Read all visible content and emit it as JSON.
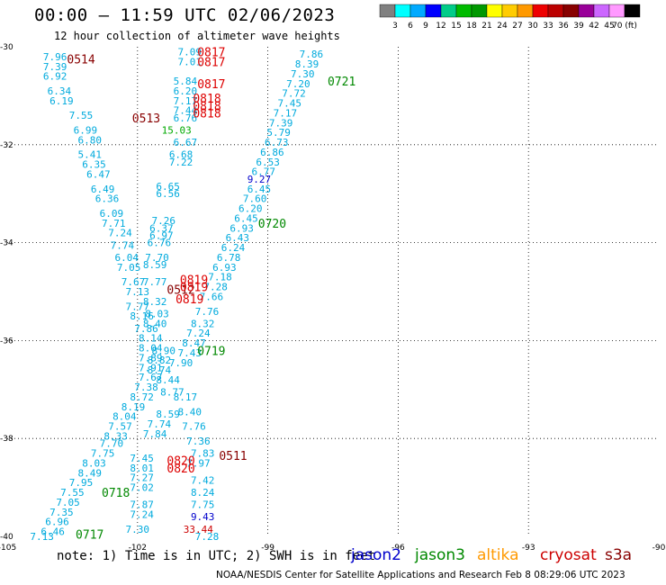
{
  "header": {
    "title": "00:00 – 11:59 UTC 02/06/2023",
    "subtitle": "12 hour collection of altimeter wave heights"
  },
  "colorbar": {
    "colors": [
      "#808080",
      "#00ffff",
      "#00aaff",
      "#0000ff",
      "#00cc88",
      "#00bb00",
      "#009900",
      "#ffff00",
      "#ffcc00",
      "#ff9900",
      "#ee0000",
      "#bb0000",
      "#880000",
      "#990099",
      "#cc66ff",
      "#ff99ff",
      "#000000"
    ],
    "labels": [
      "3",
      "6",
      "9",
      "12",
      "15",
      "18",
      "21",
      "24",
      "27",
      "30",
      "33",
      "36",
      "39",
      "42",
      "45",
      "70 (ft)"
    ]
  },
  "footer": {
    "note": "note:  1) Time is in UTC; 2) SWH is in feet",
    "satellites": [
      {
        "name": "jason2",
        "color": "#0000cc"
      },
      {
        "name": "jason3",
        "color": "#008800"
      },
      {
        "name": "altika",
        "color": "#ff9900"
      },
      {
        "name": "cryosat",
        "color": "#cc0000"
      },
      {
        "name": "s3a",
        "color": "#880000"
      }
    ],
    "credit": "NOAA/NESDIS Center for Satellite Applications and Research    Feb  8 08:29:06 UTC 2023"
  },
  "chart_data": {
    "type": "scatter",
    "x_range": [
      -105,
      -90
    ],
    "y_range": [
      -40,
      -30
    ],
    "xticks": [
      -105,
      -102,
      -99,
      -96,
      -93,
      -90
    ],
    "yticks": [
      -30,
      -32,
      -34,
      -36,
      -38,
      -40
    ],
    "grid": "dotted",
    "swh_labels": [
      {
        "lon": -103.9,
        "lat": -30.2,
        "v": "7.96",
        "c": "#00aadd"
      },
      {
        "lon": -103.9,
        "lat": -30.4,
        "v": "7.39",
        "c": "#00aadd"
      },
      {
        "lon": -103.9,
        "lat": -30.6,
        "v": "6.92",
        "c": "#00aadd"
      },
      {
        "lon": -103.8,
        "lat": -30.9,
        "v": "6.34",
        "c": "#00aadd"
      },
      {
        "lon": -103.75,
        "lat": -31.1,
        "v": "6.19",
        "c": "#00aadd"
      },
      {
        "lon": -103.3,
        "lat": -31.4,
        "v": "7.55",
        "c": "#00aadd"
      },
      {
        "lon": -103.2,
        "lat": -31.7,
        "v": "6.99",
        "c": "#00aadd"
      },
      {
        "lon": -103.1,
        "lat": -31.9,
        "v": "6.80",
        "c": "#00aadd"
      },
      {
        "lon": -103.1,
        "lat": -32.2,
        "v": "5.41",
        "c": "#00aadd"
      },
      {
        "lon": -103.0,
        "lat": -32.4,
        "v": "6.35",
        "c": "#00aadd"
      },
      {
        "lon": -102.9,
        "lat": -32.6,
        "v": "6.47",
        "c": "#00aadd"
      },
      {
        "lon": -102.8,
        "lat": -32.9,
        "v": "6.49",
        "c": "#00aadd"
      },
      {
        "lon": -102.7,
        "lat": -33.1,
        "v": "6.36",
        "c": "#00aadd"
      },
      {
        "lon": -102.6,
        "lat": -33.4,
        "v": "6.09",
        "c": "#00aadd"
      },
      {
        "lon": -102.55,
        "lat": -33.6,
        "v": "7.71",
        "c": "#00aadd"
      },
      {
        "lon": -102.4,
        "lat": -33.8,
        "v": "7.24",
        "c": "#00aadd"
      },
      {
        "lon": -102.35,
        "lat": -34.05,
        "v": "7.74",
        "c": "#00aadd"
      },
      {
        "lon": -102.25,
        "lat": -34.3,
        "v": "6.04",
        "c": "#00aadd"
      },
      {
        "lon": -102.2,
        "lat": -34.5,
        "v": "7.05",
        "c": "#00aadd"
      },
      {
        "lon": -102.1,
        "lat": -34.8,
        "v": "7.67",
        "c": "#00aadd"
      },
      {
        "lon": -102.0,
        "lat": -35.0,
        "v": "7.13",
        "c": "#00aadd"
      },
      {
        "lon": -102.0,
        "lat": -35.3,
        "v": "7.77",
        "c": "#00aadd"
      },
      {
        "lon": -101.9,
        "lat": -35.5,
        "v": "8.16",
        "c": "#00aadd"
      },
      {
        "lon": -101.8,
        "lat": -35.75,
        "v": "7.86",
        "c": "#00aadd"
      },
      {
        "lon": -101.7,
        "lat": -35.95,
        "v": "8.14",
        "c": "#00aadd"
      },
      {
        "lon": -101.7,
        "lat": -36.15,
        "v": "8.04",
        "c": "#00aadd"
      },
      {
        "lon": -101.7,
        "lat": -36.35,
        "v": "7.89",
        "c": "#00aadd"
      },
      {
        "lon": -101.7,
        "lat": -36.55,
        "v": "7.91",
        "c": "#00aadd"
      },
      {
        "lon": -101.7,
        "lat": -36.75,
        "v": "7.67",
        "c": "#00aadd"
      },
      {
        "lon": -101.8,
        "lat": -36.95,
        "v": "7.38",
        "c": "#00aadd"
      },
      {
        "lon": -101.9,
        "lat": -37.15,
        "v": "8.72",
        "c": "#00aadd"
      },
      {
        "lon": -102.1,
        "lat": -37.35,
        "v": "8.19",
        "c": "#00aadd"
      },
      {
        "lon": -102.3,
        "lat": -37.55,
        "v": "8.04",
        "c": "#00aadd"
      },
      {
        "lon": -102.4,
        "lat": -37.75,
        "v": "7.57",
        "c": "#00aadd"
      },
      {
        "lon": -102.5,
        "lat": -37.95,
        "v": "8.33",
        "c": "#00aadd"
      },
      {
        "lon": -102.6,
        "lat": -38.1,
        "v": "7.70",
        "c": "#00aadd"
      },
      {
        "lon": -102.8,
        "lat": -38.3,
        "v": "7.75",
        "c": "#00aadd"
      },
      {
        "lon": -103.0,
        "lat": -38.5,
        "v": "8.03",
        "c": "#00aadd"
      },
      {
        "lon": -103.1,
        "lat": -38.7,
        "v": "8.49",
        "c": "#00aadd"
      },
      {
        "lon": -103.3,
        "lat": -38.9,
        "v": "7.95",
        "c": "#00aadd"
      },
      {
        "lon": -103.5,
        "lat": -39.1,
        "v": "7.55",
        "c": "#00aadd"
      },
      {
        "lon": -103.6,
        "lat": -39.3,
        "v": "7.05",
        "c": "#00aadd"
      },
      {
        "lon": -103.75,
        "lat": -39.5,
        "v": "7.35",
        "c": "#00aadd"
      },
      {
        "lon": -103.85,
        "lat": -39.7,
        "v": "6.96",
        "c": "#00aadd"
      },
      {
        "lon": -103.95,
        "lat": -39.9,
        "v": "6.46",
        "c": "#00aadd"
      },
      {
        "lon": -104.2,
        "lat": -40.0,
        "v": "7.13",
        "c": "#00aadd"
      },
      {
        "lon": -100.8,
        "lat": -30.1,
        "v": "7.09",
        "c": "#00aadd"
      },
      {
        "lon": -100.8,
        "lat": -30.3,
        "v": "7.01",
        "c": "#00aadd"
      },
      {
        "lon": -100.9,
        "lat": -30.7,
        "v": "5.84",
        "c": "#00aadd"
      },
      {
        "lon": -100.9,
        "lat": -30.9,
        "v": "6.20",
        "c": "#00aadd"
      },
      {
        "lon": -100.9,
        "lat": -31.1,
        "v": "7.17",
        "c": "#00aadd"
      },
      {
        "lon": -100.9,
        "lat": -31.3,
        "v": "7.44",
        "c": "#00aadd"
      },
      {
        "lon": -100.9,
        "lat": -31.45,
        "v": "6.76",
        "c": "#00aadd"
      },
      {
        "lon": -101.1,
        "lat": -31.7,
        "v": "15.03",
        "c": "#00aa00"
      },
      {
        "lon": -100.9,
        "lat": -31.95,
        "v": "6.67",
        "c": "#00aadd"
      },
      {
        "lon": -101.0,
        "lat": -32.2,
        "v": "6.68",
        "c": "#00aadd"
      },
      {
        "lon": -101.0,
        "lat": -32.35,
        "v": "7.22",
        "c": "#00aadd"
      },
      {
        "lon": -101.3,
        "lat": -32.85,
        "v": "6.65",
        "c": "#00aadd"
      },
      {
        "lon": -101.3,
        "lat": -33.0,
        "v": "6.56",
        "c": "#00aadd"
      },
      {
        "lon": -101.4,
        "lat": -33.55,
        "v": "7.26",
        "c": "#00aadd"
      },
      {
        "lon": -101.45,
        "lat": -33.7,
        "v": "6.37",
        "c": "#00aadd"
      },
      {
        "lon": -101.45,
        "lat": -33.85,
        "v": "6.97",
        "c": "#00aadd"
      },
      {
        "lon": -101.5,
        "lat": -34.0,
        "v": "6.76",
        "c": "#00aadd"
      },
      {
        "lon": -101.55,
        "lat": -34.3,
        "v": "7.70",
        "c": "#00aadd"
      },
      {
        "lon": -101.6,
        "lat": -34.45,
        "v": "8.59",
        "c": "#00aadd"
      },
      {
        "lon": -101.6,
        "lat": -34.8,
        "v": "7.77",
        "c": "#00aadd"
      },
      {
        "lon": -101.6,
        "lat": -35.2,
        "v": "8.32",
        "c": "#00aadd"
      },
      {
        "lon": -101.55,
        "lat": -35.45,
        "v": "8.03",
        "c": "#00aadd"
      },
      {
        "lon": -101.6,
        "lat": -35.65,
        "v": "8.40",
        "c": "#00aadd"
      },
      {
        "lon": -101.4,
        "lat": -36.2,
        "v": "8.90",
        "c": "#00aadd"
      },
      {
        "lon": -101.5,
        "lat": -36.4,
        "v": "8.82",
        "c": "#00aadd"
      },
      {
        "lon": -101.5,
        "lat": -36.6,
        "v": "8.74",
        "c": "#00aadd"
      },
      {
        "lon": -101.3,
        "lat": -36.8,
        "v": "8.44",
        "c": "#00aadd"
      },
      {
        "lon": -101.2,
        "lat": -37.05,
        "v": "8.77",
        "c": "#00aadd"
      },
      {
        "lon": -101.3,
        "lat": -37.5,
        "v": "8.59",
        "c": "#00aadd"
      },
      {
        "lon": -101.5,
        "lat": -37.7,
        "v": "7.74",
        "c": "#00aadd"
      },
      {
        "lon": -101.6,
        "lat": -37.9,
        "v": "7.84",
        "c": "#00aadd"
      },
      {
        "lon": -101.9,
        "lat": -38.4,
        "v": "7.45",
        "c": "#00aadd"
      },
      {
        "lon": -101.9,
        "lat": -38.6,
        "v": "8.01",
        "c": "#00aadd"
      },
      {
        "lon": -101.9,
        "lat": -38.8,
        "v": "7.27",
        "c": "#00aadd"
      },
      {
        "lon": -101.9,
        "lat": -39.0,
        "v": "7.02",
        "c": "#00aadd"
      },
      {
        "lon": -101.9,
        "lat": -39.35,
        "v": "7.87",
        "c": "#00aadd"
      },
      {
        "lon": -101.9,
        "lat": -39.55,
        "v": "7.24",
        "c": "#00aadd"
      },
      {
        "lon": -102.0,
        "lat": -39.85,
        "v": "7.30",
        "c": "#00aadd"
      },
      {
        "lon": -98.0,
        "lat": -30.15,
        "v": "7.86",
        "c": "#00aadd"
      },
      {
        "lon": -98.1,
        "lat": -30.35,
        "v": "8.39",
        "c": "#00aadd"
      },
      {
        "lon": -98.2,
        "lat": -30.55,
        "v": "7.30",
        "c": "#00aadd"
      },
      {
        "lon": -98.3,
        "lat": -30.75,
        "v": "7.20",
        "c": "#00aadd"
      },
      {
        "lon": -98.4,
        "lat": -30.95,
        "v": "7.72",
        "c": "#00aadd"
      },
      {
        "lon": -98.5,
        "lat": -31.15,
        "v": "7.45",
        "c": "#00aadd"
      },
      {
        "lon": -98.6,
        "lat": -31.35,
        "v": "7.17",
        "c": "#00aadd"
      },
      {
        "lon": -98.7,
        "lat": -31.55,
        "v": "7.39",
        "c": "#00aadd"
      },
      {
        "lon": -98.75,
        "lat": -31.75,
        "v": "5.79",
        "c": "#00aadd"
      },
      {
        "lon": -98.8,
        "lat": -31.95,
        "v": "6.73",
        "c": "#00aadd"
      },
      {
        "lon": -98.9,
        "lat": -32.15,
        "v": "6.86",
        "c": "#00aadd"
      },
      {
        "lon": -99.0,
        "lat": -32.35,
        "v": "6.53",
        "c": "#00aadd"
      },
      {
        "lon": -99.1,
        "lat": -32.55,
        "v": "6.77",
        "c": "#00aadd"
      },
      {
        "lon": -99.2,
        "lat": -32.7,
        "v": "9.27",
        "c": "#0000cc"
      },
      {
        "lon": -99.2,
        "lat": -32.9,
        "v": "6.45",
        "c": "#00aadd"
      },
      {
        "lon": -99.3,
        "lat": -33.1,
        "v": "7.60",
        "c": "#00aadd"
      },
      {
        "lon": -99.4,
        "lat": -33.3,
        "v": "6.20",
        "c": "#00aadd"
      },
      {
        "lon": -99.5,
        "lat": -33.5,
        "v": "6.45",
        "c": "#00aadd"
      },
      {
        "lon": -99.6,
        "lat": -33.7,
        "v": "6.93",
        "c": "#00aadd"
      },
      {
        "lon": -99.7,
        "lat": -33.9,
        "v": "6.43",
        "c": "#00aadd"
      },
      {
        "lon": -99.8,
        "lat": -34.1,
        "v": "6.24",
        "c": "#00aadd"
      },
      {
        "lon": -99.9,
        "lat": -34.3,
        "v": "6.78",
        "c": "#00aadd"
      },
      {
        "lon": -100.0,
        "lat": -34.5,
        "v": "6.93",
        "c": "#00aadd"
      },
      {
        "lon": -100.1,
        "lat": -34.7,
        "v": "7.18",
        "c": "#00aadd"
      },
      {
        "lon": -100.2,
        "lat": -34.9,
        "v": "7.28",
        "c": "#00aadd"
      },
      {
        "lon": -100.3,
        "lat": -35.1,
        "v": "7.66",
        "c": "#00aadd"
      },
      {
        "lon": -100.4,
        "lat": -35.4,
        "v": "7.76",
        "c": "#00aadd"
      },
      {
        "lon": -100.5,
        "lat": -35.65,
        "v": "8.32",
        "c": "#00aadd"
      },
      {
        "lon": -100.6,
        "lat": -35.85,
        "v": "7.24",
        "c": "#00aadd"
      },
      {
        "lon": -100.7,
        "lat": -36.05,
        "v": "8.47",
        "c": "#00aadd"
      },
      {
        "lon": -100.8,
        "lat": -36.25,
        "v": "7.43",
        "c": "#00aadd"
      },
      {
        "lon": -101.0,
        "lat": -36.45,
        "v": "7.90",
        "c": "#00aadd"
      },
      {
        "lon": -100.9,
        "lat": -37.15,
        "v": "8.17",
        "c": "#00aadd"
      },
      {
        "lon": -100.8,
        "lat": -37.45,
        "v": "8.40",
        "c": "#00aadd"
      },
      {
        "lon": -100.7,
        "lat": -37.75,
        "v": "7.76",
        "c": "#00aadd"
      },
      {
        "lon": -100.6,
        "lat": -38.05,
        "v": "7.36",
        "c": "#00aadd"
      },
      {
        "lon": -100.5,
        "lat": -38.3,
        "v": "7.83",
        "c": "#00aadd"
      },
      {
        "lon": -100.6,
        "lat": -38.5,
        "v": "7.97",
        "c": "#00aadd"
      },
      {
        "lon": -100.5,
        "lat": -38.85,
        "v": "7.42",
        "c": "#00aadd"
      },
      {
        "lon": -100.5,
        "lat": -39.1,
        "v": "8.24",
        "c": "#00aadd"
      },
      {
        "lon": -100.5,
        "lat": -39.35,
        "v": "7.75",
        "c": "#00aadd"
      },
      {
        "lon": -100.5,
        "lat": -39.6,
        "v": "9.43",
        "c": "#0000cc"
      },
      {
        "lon": -100.6,
        "lat": -39.85,
        "v": "33.44",
        "c": "#cc0000"
      },
      {
        "lon": -100.4,
        "lat": -40.0,
        "v": "7.28",
        "c": "#00aadd"
      }
    ],
    "time_labels": [
      {
        "lon": -103.3,
        "lat": -30.25,
        "t": "0514",
        "c": "#880000"
      },
      {
        "lon": -101.8,
        "lat": -31.45,
        "t": "0513",
        "c": "#880000"
      },
      {
        "lon": -101.0,
        "lat": -34.95,
        "t": "0512",
        "c": "#880000"
      },
      {
        "lon": -100.3,
        "lat": -30.1,
        "t": "0817",
        "c": "#dd0000"
      },
      {
        "lon": -100.3,
        "lat": -30.3,
        "t": "0817",
        "c": "#dd0000"
      },
      {
        "lon": -100.3,
        "lat": -30.75,
        "t": "0817",
        "c": "#dd0000"
      },
      {
        "lon": -100.4,
        "lat": -31.05,
        "t": "0818",
        "c": "#dd0000"
      },
      {
        "lon": -100.4,
        "lat": -31.2,
        "t": "0818",
        "c": "#dd0000"
      },
      {
        "lon": -100.4,
        "lat": -31.35,
        "t": "0818",
        "c": "#dd0000"
      },
      {
        "lon": -100.7,
        "lat": -34.75,
        "t": "0819",
        "c": "#dd0000"
      },
      {
        "lon": -100.7,
        "lat": -34.9,
        "t": "0819",
        "c": "#dd0000"
      },
      {
        "lon": -100.8,
        "lat": -35.15,
        "t": "0819",
        "c": "#dd0000"
      },
      {
        "lon": -101.0,
        "lat": -38.45,
        "t": "0820",
        "c": "#dd0000"
      },
      {
        "lon": -101.0,
        "lat": -38.6,
        "t": "0820",
        "c": "#dd0000"
      },
      {
        "lon": -97.3,
        "lat": -30.7,
        "t": "0721",
        "c": "#008800"
      },
      {
        "lon": -98.9,
        "lat": -33.6,
        "t": "0720",
        "c": "#008800"
      },
      {
        "lon": -100.3,
        "lat": -36.2,
        "t": "0719",
        "c": "#008800"
      },
      {
        "lon": -102.5,
        "lat": -39.1,
        "t": "0718",
        "c": "#008800"
      },
      {
        "lon": -103.1,
        "lat": -39.95,
        "t": "0717",
        "c": "#008800"
      },
      {
        "lon": -99.8,
        "lat": -38.35,
        "t": "0511",
        "c": "#880000"
      }
    ]
  }
}
